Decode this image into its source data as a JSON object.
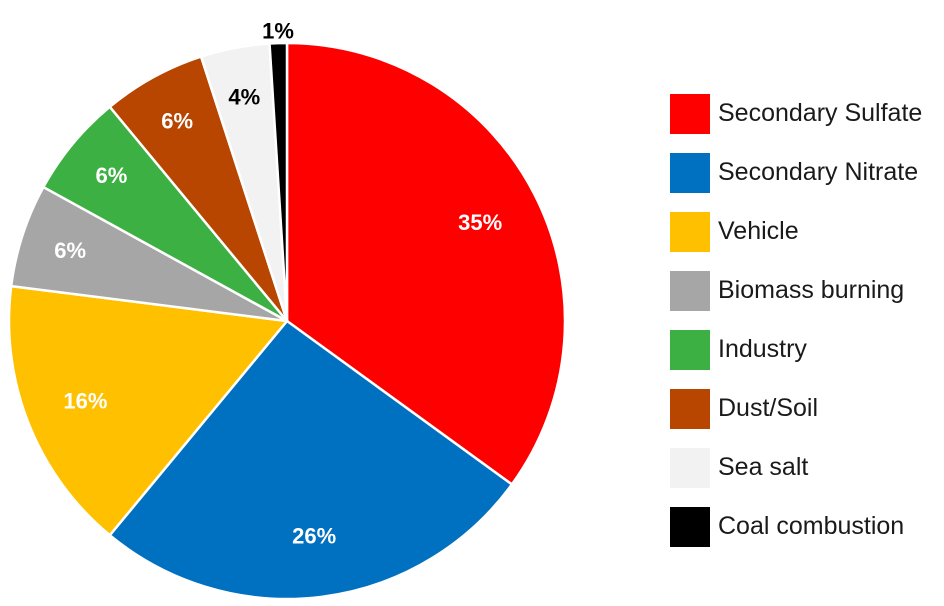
{
  "chart_data": {
    "type": "pie",
    "start_angle_deg": 0,
    "direction": "clockwise",
    "legend_position": "right",
    "slices": [
      {
        "label": "Secondary Sulfate",
        "value": 35,
        "display": "35%",
        "color": "#FF0000",
        "label_color": "#FFFFFF"
      },
      {
        "label": "Secondary Nitrate",
        "value": 26,
        "display": "26%",
        "color": "#0070C0",
        "label_color": "#FFFFFF"
      },
      {
        "label": "Vehicle",
        "value": 16,
        "display": "16%",
        "color": "#FFC000",
        "label_color": "#FFFFFF"
      },
      {
        "label": "Biomass burning",
        "value": 6,
        "display": "6%",
        "color": "#A6A6A6",
        "label_color": "#FFFFFF"
      },
      {
        "label": "Industry",
        "value": 6,
        "display": "6%",
        "color": "#3CB043",
        "label_color": "#FFFFFF"
      },
      {
        "label": "Dust/Soil",
        "value": 6,
        "display": "6%",
        "color": "#B84500",
        "label_color": "#FFFFFF"
      },
      {
        "label": "Sea salt",
        "value": 4,
        "display": "4%",
        "color": "#F2F2F2",
        "label_color": "#000000"
      },
      {
        "label": "Coal combustion",
        "value": 1,
        "display": "1%",
        "color": "#000000",
        "label_color": "#000000"
      }
    ]
  }
}
